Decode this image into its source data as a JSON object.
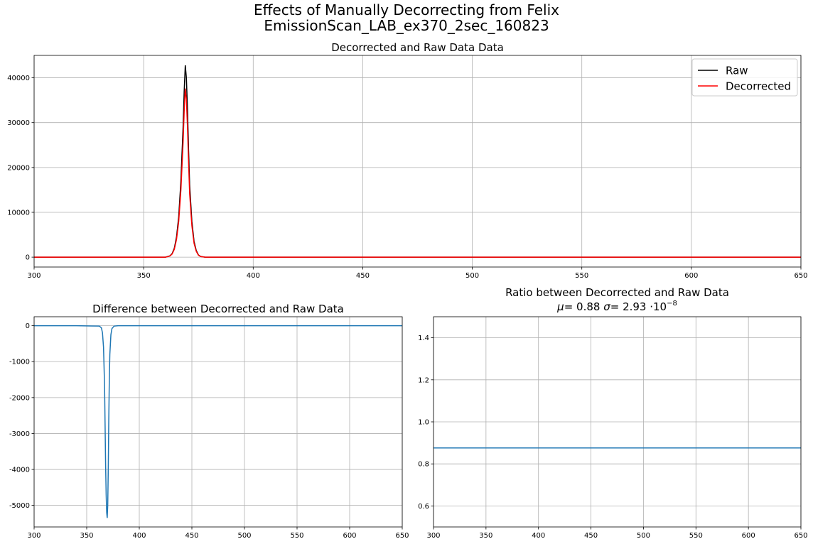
{
  "figure": {
    "title_line1": "Effects of Manually Decorrecting from Felix",
    "title_line2": "EmissionScan_LAB_ex370_2sec_160823"
  },
  "chart_data": [
    {
      "type": "line",
      "title": "Decorrected and Raw Data Data",
      "xlabel": "",
      "ylabel": "",
      "xlim": [
        300,
        650
      ],
      "ylim": [
        -2200,
        45000
      ],
      "xticks": [
        300,
        350,
        400,
        450,
        500,
        550,
        600,
        650
      ],
      "yticks": [
        0,
        10000,
        20000,
        30000,
        40000
      ],
      "grid": true,
      "legend": "top-right",
      "series": [
        {
          "name": "Raw",
          "color": "#000000",
          "x": [
            300,
            340,
            360,
            362,
            363,
            364,
            365,
            366,
            367,
            368,
            368.5,
            369,
            369.5,
            370,
            370.5,
            371,
            372,
            373,
            374,
            375,
            376,
            378,
            380,
            400,
            450,
            500,
            550,
            600,
            650
          ],
          "y": [
            0,
            0,
            0,
            300,
            800,
            2000,
            4500,
            9000,
            17000,
            29000,
            37000,
            42800,
            40000,
            33000,
            24000,
            16000,
            8000,
            3500,
            1500,
            500,
            150,
            0,
            0,
            0,
            0,
            0,
            0,
            0,
            0
          ]
        },
        {
          "name": "Decorrected",
          "color": "#ff0000",
          "x": [
            300,
            340,
            360,
            362,
            363,
            364,
            365,
            366,
            367,
            368,
            368.5,
            369,
            369.5,
            370,
            370.5,
            371,
            372,
            373,
            374,
            375,
            376,
            378,
            380,
            400,
            450,
            500,
            550,
            600,
            650
          ],
          "y": [
            0,
            0,
            0,
            260,
            700,
            1760,
            3960,
            7920,
            14960,
            25520,
            32560,
            37600,
            35200,
            29040,
            21120,
            14080,
            7040,
            3080,
            1320,
            440,
            130,
            0,
            0,
            0,
            0,
            0,
            0,
            0,
            0
          ]
        }
      ]
    },
    {
      "type": "line",
      "title": "Difference between Decorrected and Raw Data",
      "xlabel": "",
      "ylabel": "",
      "xlim": [
        300,
        650
      ],
      "ylim": [
        -5600,
        250
      ],
      "xticks": [
        300,
        350,
        400,
        450,
        500,
        550,
        600,
        650
      ],
      "yticks": [
        0,
        -1000,
        -2000,
        -3000,
        -4000,
        -5000
      ],
      "grid": true,
      "series": [
        {
          "color": "#1f77b4",
          "x": [
            300,
            340,
            362,
            364,
            365,
            366,
            367,
            367.5,
            368,
            368.5,
            369,
            369.5,
            370,
            370.5,
            371,
            371.5,
            372,
            373,
            374,
            376,
            380,
            400,
            450,
            500,
            550,
            600,
            650
          ],
          "y": [
            0,
            0,
            -10,
            -60,
            -200,
            -600,
            -1700,
            -2800,
            -3900,
            -4700,
            -5200,
            -5350,
            -5000,
            -4000,
            -2600,
            -1500,
            -800,
            -250,
            -80,
            -10,
            0,
            0,
            0,
            0,
            0,
            0,
            0
          ]
        }
      ]
    },
    {
      "type": "line",
      "title": "Ratio between Decorrected and Raw Data",
      "subtitle": {
        "mu_symbol": "μ",
        "mu_text": "=  0.88",
        "sigma_symbol": "σ",
        "sigma_text": "=  2.93 ·10",
        "sigma_exp": "−8"
      },
      "xlabel": "",
      "ylabel": "",
      "xlim": [
        300,
        650
      ],
      "ylim": [
        0.5,
        1.5
      ],
      "xticks": [
        300,
        350,
        400,
        450,
        500,
        550,
        600,
        650
      ],
      "yticks": [
        0.6,
        0.8,
        1.0,
        1.2,
        1.4
      ],
      "ytick_labels": [
        "0.6",
        "0.8",
        "1.0",
        "1.2",
        "1.4"
      ],
      "grid": true,
      "series": [
        {
          "color": "#1f77b4",
          "x": [
            300,
            650
          ],
          "y": [
            0.876,
            0.876
          ]
        }
      ]
    }
  ]
}
